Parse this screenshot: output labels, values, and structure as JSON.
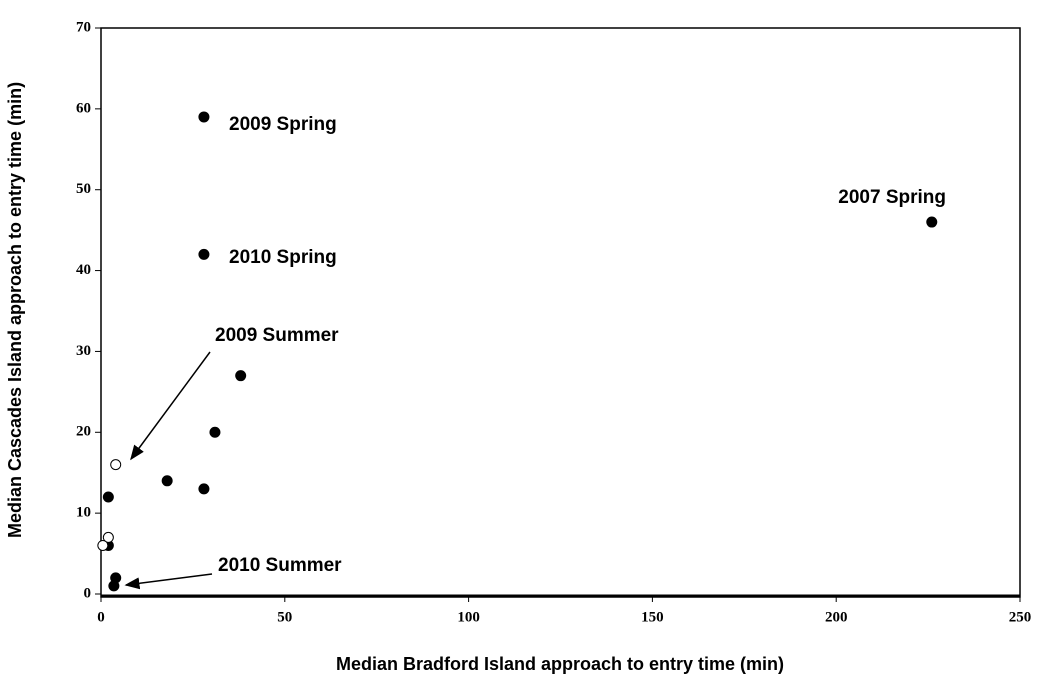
{
  "chart_data": {
    "type": "scatter",
    "x_label": "Median Bradford Island approach to entry time (min)",
    "y_label": "Median Cascades Island approach to entry time (min)",
    "xlim": [
      0,
      250
    ],
    "xticks": [
      0,
      50,
      100,
      150,
      200,
      250
    ],
    "ylim": [
      0,
      70
    ],
    "yticks": [
      0,
      10,
      20,
      30,
      40,
      50,
      60,
      70
    ],
    "series": [
      {
        "color": "#000000",
        "filled": true,
        "x": [
          28,
          28,
          226,
          38,
          31,
          18,
          28,
          2,
          2,
          4,
          3.5
        ],
        "values": [
          59,
          42,
          46,
          27,
          20,
          14,
          13,
          12,
          6,
          2,
          1
        ]
      },
      {
        "color": "#000000",
        "filled": false,
        "x": [
          4,
          2,
          0.5
        ],
        "values": [
          16,
          7,
          6
        ]
      }
    ],
    "annotations": [
      "2009 Spring",
      "2010 Spring",
      "2007 Spring",
      "2009 Summer",
      "2010 Summer"
    ]
  }
}
